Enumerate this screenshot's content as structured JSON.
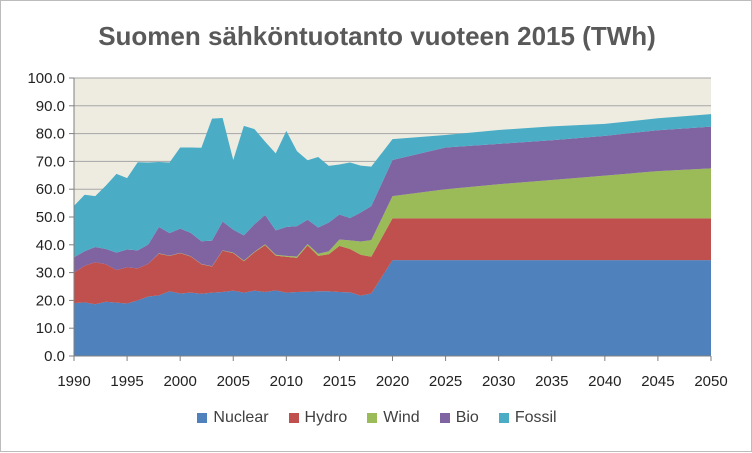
{
  "chart_data": {
    "type": "area",
    "stacked": true,
    "title": "Suomen sähköntuotanto vuoteen 2015 (TWh)",
    "xlabel": "",
    "ylabel": "",
    "xlim": [
      1990,
      2050
    ],
    "ylim": [
      0,
      100
    ],
    "x_ticks": [
      "1990",
      "1995",
      "2000",
      "2005",
      "2010",
      "2015",
      "2020",
      "2025",
      "2030",
      "2035",
      "2040",
      "2045",
      "2050"
    ],
    "y_ticks": [
      "0.0",
      "10.0",
      "20.0",
      "30.0",
      "40.0",
      "50.0",
      "60.0",
      "70.0",
      "80.0",
      "90.0",
      "100.0"
    ],
    "grid": true,
    "plot_background": "#eeece1",
    "legend_position": "bottom",
    "x": [
      1990,
      1991,
      1992,
      1993,
      1994,
      1995,
      1996,
      1997,
      1998,
      1999,
      2000,
      2001,
      2002,
      2003,
      2004,
      2005,
      2006,
      2007,
      2008,
      2009,
      2010,
      2011,
      2012,
      2013,
      2014,
      2015,
      2016,
      2017,
      2018,
      2020,
      2025,
      2030,
      2035,
      2040,
      2045,
      2050
    ],
    "series": [
      {
        "name": "Nuclear",
        "color": "#4f81bd",
        "values": [
          19,
          19.3,
          18.6,
          19.5,
          19.2,
          18.9,
          20,
          21.4,
          21.8,
          23.3,
          22.5,
          22.8,
          22.4,
          22.8,
          23,
          23.5,
          22.8,
          23.5,
          23,
          23.6,
          22.8,
          23,
          23.1,
          23.3,
          23.3,
          23,
          22.9,
          21.7,
          22.5,
          34.5,
          34.5,
          34.5,
          34.5,
          34.5,
          34.5,
          34.5
        ]
      },
      {
        "name": "Hydro",
        "color": "#c0504d",
        "values": [
          11,
          13.1,
          15.1,
          13.5,
          11.7,
          13,
          11.5,
          11.8,
          15,
          12.7,
          14.5,
          13,
          10.6,
          9.4,
          14.9,
          13.5,
          11.3,
          13.8,
          16.9,
          12.5,
          12.9,
          12.3,
          16.7,
          12.7,
          13.3,
          16.6,
          15.6,
          14.7,
          13.2,
          15,
          15,
          15,
          15,
          15,
          15,
          15
        ]
      },
      {
        "name": "Wind",
        "color": "#9bbb59",
        "values": [
          0,
          0,
          0,
          0,
          0,
          0,
          0,
          0,
          0.1,
          0.1,
          0.1,
          0.1,
          0.1,
          0.1,
          0.1,
          0.2,
          0.2,
          0.2,
          0.3,
          0.3,
          0.3,
          0.5,
          0.5,
          0.8,
          1.1,
          2.3,
          3.1,
          4.8,
          6,
          8,
          10.5,
          12.3,
          13.8,
          15.4,
          17,
          18
        ]
      },
      {
        "name": "Bio",
        "color": "#8064a2",
        "values": [
          5.5,
          5.3,
          5.5,
          5.5,
          6.3,
          6.4,
          6.5,
          6.9,
          9.5,
          8.1,
          8.7,
          8.4,
          8.2,
          9.2,
          10.4,
          8.2,
          9.1,
          9.9,
          10.5,
          8.8,
          10.4,
          10.9,
          8.7,
          9.4,
          10.3,
          9,
          8,
          10.4,
          12.2,
          13,
          15,
          14.5,
          14.3,
          14.3,
          14.7,
          15
        ]
      },
      {
        "name": "Fossil",
        "color": "#4bacc6",
        "values": [
          18.5,
          20.3,
          18.3,
          22.8,
          28.3,
          25.7,
          31.7,
          29.5,
          23.4,
          25.4,
          29.2,
          30.7,
          33.6,
          43.9,
          37.2,
          25.1,
          39.4,
          34.2,
          26.4,
          27.7,
          34.6,
          27,
          21.4,
          25.4,
          20.4,
          18,
          20,
          16.9,
          14.2,
          7.5,
          4.5,
          5,
          5,
          4.3,
          4.3,
          4.5
        ]
      }
    ]
  }
}
